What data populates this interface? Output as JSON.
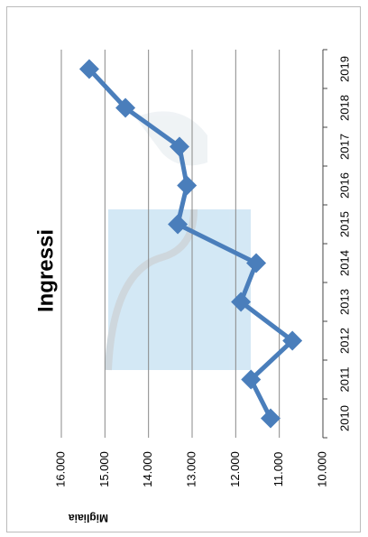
{
  "chart_data": {
    "type": "line",
    "title": "Ingressi",
    "y_label": "Migliaia",
    "categories": [
      "2010",
      "2011",
      "2012",
      "2013",
      "2014",
      "2015",
      "2016",
      "2017",
      "2018",
      "2019"
    ],
    "series": [
      {
        "name": "Ingressi",
        "color": "#4a7ebb",
        "values": [
          11200,
          11650,
          10700,
          11880,
          11530,
          13330,
          13120,
          13290,
          14530,
          15360
        ]
      }
    ],
    "ylim": [
      10000,
      16000
    ],
    "yticks": [
      {
        "value": 10000,
        "label": "10.000"
      },
      {
        "value": 11000,
        "label": "11.000"
      },
      {
        "value": 12000,
        "label": "12.000"
      },
      {
        "value": 13000,
        "label": "13.000"
      },
      {
        "value": 14000,
        "label": "14.000"
      },
      {
        "value": 15000,
        "label": "15.000"
      },
      {
        "value": 16000,
        "label": "16.000"
      }
    ],
    "grid": true
  }
}
